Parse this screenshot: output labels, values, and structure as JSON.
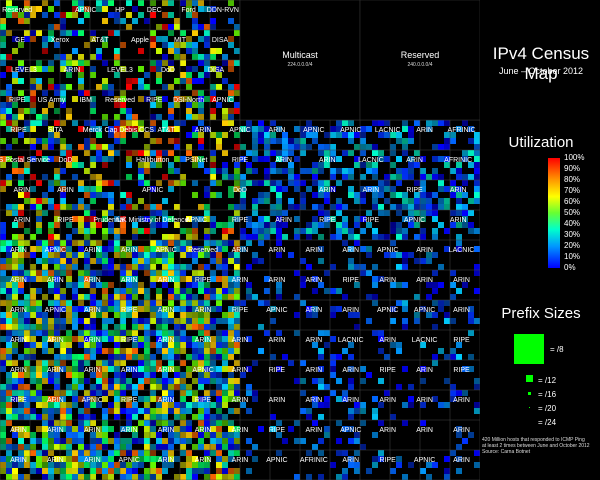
{
  "legend": {
    "title": "IPv4 Census Map",
    "subtitle": "June – October 2012",
    "utilization_title": "Utilization",
    "utilization_ticks": [
      "100%",
      "90%",
      "80%",
      "70%",
      "60%",
      "50%",
      "40%",
      "30%",
      "20%",
      "10%",
      "0%"
    ],
    "prefix_title": "Prefix Sizes",
    "prefix_labels": [
      "= /8",
      "= /12",
      "= /16",
      "= /20",
      "= /24"
    ],
    "footnote_1": "420 Million hosts that responded to ICMP Ping",
    "footnote_2": "at least 2 times between June and October 2012",
    "footnote_3": "Source: Carna Botnet"
  },
  "map": {
    "top_left": [
      [
        "Reserved",
        "",
        "APNIC",
        "HP",
        "DEC",
        "Ford",
        "DDN-RVN"
      ],
      [
        "GE",
        "Xerox",
        "AT&T",
        "Apple",
        "MIT",
        "DISA"
      ],
      [
        "LEVEL3",
        "ARIN",
        "LEVEL3",
        "DoD",
        "DISA"
      ],
      [
        "RIPE",
        "US Army",
        "IBM",
        "Reserved",
        "RIPE",
        "DSI-North",
        "APNIC"
      ]
    ],
    "row5": [
      "RIPE",
      "SITA",
      "Merck",
      "Cap Debis CCS",
      "AT&T",
      "ARIN",
      "APNIC",
      "ARIN",
      "APNIC",
      "APNIC",
      "LACNIC",
      "ARIN",
      "AFRINIC"
    ],
    "row6": [
      "US Postal Service",
      "DoD",
      "",
      "Halliburton",
      "PSINet",
      "RIPE",
      "ARIN",
      "ARIN",
      "LACNIC",
      "ARIN",
      "AFRINIC"
    ],
    "row7": [
      "ARIN",
      "ARIN",
      "",
      "APNIC",
      "",
      "DoD",
      "",
      "ARIN",
      "ARIN",
      "RIPE",
      "ARIN"
    ],
    "row8": [
      "ARIN",
      "RIPE",
      "Prudential",
      "UK Ministry of Defence",
      "APNIC",
      "RIPE",
      "ARIN",
      "RIPE",
      "RIPE",
      "APNIC",
      "ARIN"
    ],
    "row9": [
      "ARIN",
      "APNIC",
      "ARIN",
      "ARIN",
      "APNIC",
      "Reserved",
      "ARIN",
      "ARIN",
      "ARIN",
      "ARIN",
      "APNIC",
      "ARIN",
      "LACNIC"
    ],
    "row10": [
      "ARIN",
      "ARIN",
      "ARIN",
      "ARIN",
      "ARIN",
      "RIPE",
      "ARIN",
      "ARIN",
      "ARIN",
      "RIPE",
      "ARIN",
      "ARIN",
      "ARIN"
    ],
    "row11": [
      "ARIN",
      "APNIC",
      "ARIN",
      "RIPE",
      "ARIN",
      "ARIN",
      "RIPE",
      "APNIC",
      "ARIN",
      "ARIN",
      "APNIC",
      "APNIC",
      "ARIN"
    ],
    "row12": [
      "ARIN",
      "ARIN",
      "ARIN",
      "RIPE",
      "ARIN",
      "ARIN",
      "ARIN",
      "ARIN",
      "ARIN",
      "LACNIC",
      "ARIN",
      "LACNIC",
      "RIPE"
    ],
    "row13": [
      "ARIN",
      "ARIN",
      "ARIN",
      "ARIN",
      "ARIN",
      "APNIC",
      "ARIN",
      "RIPE",
      "ARIN",
      "ARIN",
      "RIPE",
      "ARIN",
      "RIPE"
    ],
    "row14": [
      "RIPE",
      "ARIN",
      "APNIC",
      "RIPE",
      "ARIN",
      "RIPE",
      "ARIN",
      "ARIN",
      "ARIN",
      "ARIN",
      "ARIN",
      "ARIN",
      "ARIN"
    ],
    "row15": [
      "ARIN",
      "ARIN",
      "ARIN",
      "ARIN",
      "ARIN",
      "ARIN",
      "ARIN",
      "RIPE",
      "ARIN",
      "APNIC",
      "ARIN",
      "ARIN",
      "ARIN"
    ],
    "row16": [
      "ARIN",
      "ARIN",
      "ARIN",
      "APNIC",
      "ARIN",
      "ARIN",
      "ARIN",
      "APNIC",
      "AFRINIC",
      "ARIN",
      "RIPE",
      "APNIC",
      "ARIN"
    ],
    "multicast": {
      "label": "Multicast",
      "range": "224.0.0.0/4"
    },
    "reserved_big": {
      "label": "Reserved",
      "range": "240.0.0.0/4"
    }
  }
}
